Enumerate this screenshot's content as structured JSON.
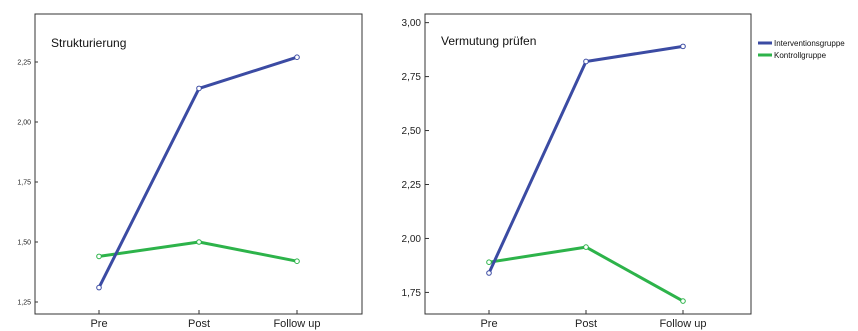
{
  "chart_data": [
    {
      "type": "line",
      "title": "Strukturierung",
      "categories": [
        "Pre",
        "Post",
        "Follow up"
      ],
      "y_ticks": [
        "1,25",
        "1,50",
        "1,75",
        "2,00",
        "2,25"
      ],
      "y_tick_values": [
        1.25,
        1.5,
        1.75,
        2.0,
        2.25
      ],
      "ylim": [
        1.2,
        2.45
      ],
      "series": [
        {
          "name": "Interventionsgruppe",
          "color": "#3b4ba3",
          "values": [
            1.31,
            2.14,
            2.27
          ]
        },
        {
          "name": "Kontrollgruppe",
          "color": "#2db34a",
          "values": [
            1.44,
            1.5,
            1.42
          ]
        }
      ],
      "grid": false,
      "legend": "none"
    },
    {
      "type": "line",
      "title": "Vermutung prüfen",
      "categories": [
        "Pre",
        "Post",
        "Follow up"
      ],
      "y_ticks": [
        "1,75",
        "2,00",
        "2,25",
        "2,50",
        "2,75",
        "3,00"
      ],
      "y_tick_values": [
        1.75,
        2.0,
        2.25,
        2.5,
        2.75,
        3.0
      ],
      "ylim": [
        1.65,
        3.04
      ],
      "series": [
        {
          "name": "Interventionsgruppe",
          "color": "#3b4ba3",
          "values": [
            1.84,
            2.82,
            2.89
          ]
        },
        {
          "name": "Kontrollgruppe",
          "color": "#2db34a",
          "values": [
            1.89,
            1.96,
            1.71
          ]
        }
      ],
      "grid": false,
      "legend": "right"
    }
  ],
  "legend": {
    "items": [
      {
        "label": "Interventionsgruppe",
        "color": "#3b4ba3"
      },
      {
        "label": "Kontrollgruppe",
        "color": "#2db34a"
      }
    ]
  }
}
